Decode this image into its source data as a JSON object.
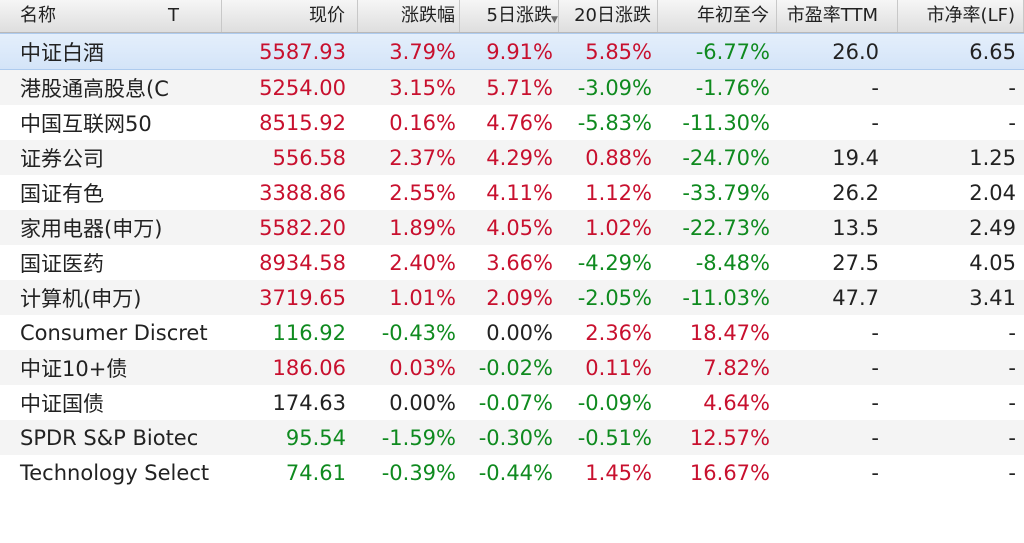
{
  "headers": {
    "name": "名称",
    "sort_indicator": "T",
    "price": "现价",
    "change_pct": "涨跌幅",
    "change_5d": "5日涨跌",
    "change_20d": "20日涨跌",
    "ytd": "年初至今",
    "pe_ttm": "市盈率TTM",
    "pb_lf": "市净率(LF)"
  },
  "rows": [
    {
      "name": "中证白酒",
      "price": "5587.93",
      "chg": "3.79%",
      "d5": "9.91%",
      "d20": "5.85%",
      "ytd": "-6.77%",
      "pe": "26.0",
      "pb": "6.65"
    },
    {
      "name": "港股通高股息(C",
      "price": "5254.00",
      "chg": "3.15%",
      "d5": "5.71%",
      "d20": "-3.09%",
      "ytd": "-1.76%",
      "pe": "-",
      "pb": "-"
    },
    {
      "name": "中国互联网50",
      "price": "8515.92",
      "chg": "0.16%",
      "d5": "4.76%",
      "d20": "-5.83%",
      "ytd": "-11.30%",
      "pe": "-",
      "pb": "-"
    },
    {
      "name": "证券公司",
      "price": "556.58",
      "chg": "2.37%",
      "d5": "4.29%",
      "d20": "0.88%",
      "ytd": "-24.70%",
      "pe": "19.4",
      "pb": "1.25"
    },
    {
      "name": "国证有色",
      "price": "3388.86",
      "chg": "2.55%",
      "d5": "4.11%",
      "d20": "1.12%",
      "ytd": "-33.79%",
      "pe": "26.2",
      "pb": "2.04"
    },
    {
      "name": "家用电器(申万)",
      "price": "5582.20",
      "chg": "1.89%",
      "d5": "4.05%",
      "d20": "1.02%",
      "ytd": "-22.73%",
      "pe": "13.5",
      "pb": "2.49"
    },
    {
      "name": "国证医药",
      "price": "8934.58",
      "chg": "2.40%",
      "d5": "3.66%",
      "d20": "-4.29%",
      "ytd": "-8.48%",
      "pe": "27.5",
      "pb": "4.05"
    },
    {
      "name": "计算机(申万)",
      "price": "3719.65",
      "chg": "1.01%",
      "d5": "2.09%",
      "d20": "-2.05%",
      "ytd": "-11.03%",
      "pe": "47.7",
      "pb": "3.41"
    },
    {
      "name": "Consumer Discret",
      "price": "116.92",
      "chg": "-0.43%",
      "d5": "0.00%",
      "d20": "2.36%",
      "ytd": "18.47%",
      "pe": "-",
      "pb": "-"
    },
    {
      "name": "中证10+债",
      "price": "186.06",
      "chg": "0.03%",
      "d5": "-0.02%",
      "d20": "0.11%",
      "ytd": "7.82%",
      "pe": "-",
      "pb": "-"
    },
    {
      "name": "中证国债",
      "price": "174.63",
      "chg": "0.00%",
      "d5": "-0.07%",
      "d20": "-0.09%",
      "ytd": "4.64%",
      "pe": "-",
      "pb": "-"
    },
    {
      "name": "SPDR S&P Biotec",
      "price": "95.54",
      "chg": "-1.59%",
      "d5": "-0.30%",
      "d20": "-0.51%",
      "ytd": "12.57%",
      "pe": "-",
      "pb": "-"
    },
    {
      "name": "Technology Select",
      "price": "74.61",
      "chg": "-0.39%",
      "d5": "-0.44%",
      "d20": "1.45%",
      "ytd": "16.67%",
      "pe": "-",
      "pb": "-"
    }
  ],
  "selected_row": 0,
  "colors": {
    "up": "#c8102e",
    "down": "#0f8a1f",
    "flat": "#222222",
    "selection": "#d4e4f8"
  }
}
